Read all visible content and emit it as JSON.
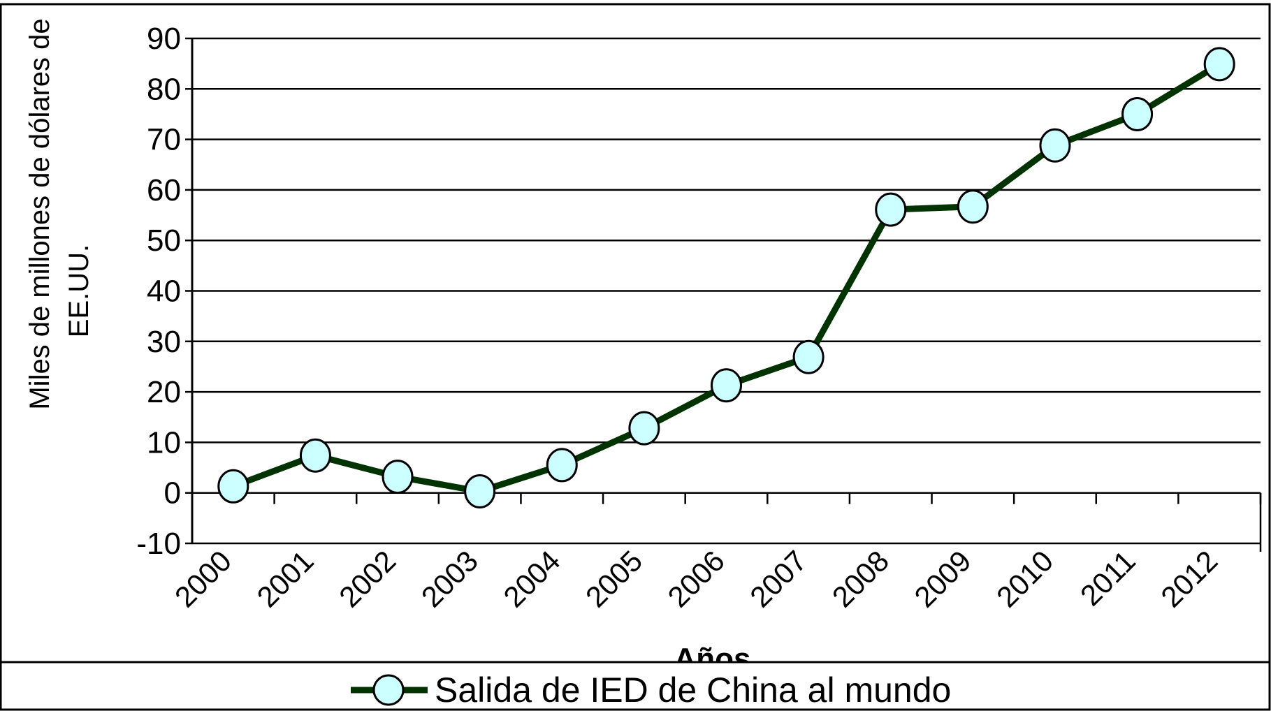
{
  "chart_data": {
    "type": "line",
    "y_label": [
      "Miles de millones de dólares de",
      "EE.UU."
    ],
    "x_label": "Años",
    "categories": [
      "2000",
      "2001",
      "2002",
      "2003",
      "2004",
      "2005",
      "2006",
      "2007",
      "2008",
      "2009",
      "2010",
      "2011",
      "2012"
    ],
    "series": [
      {
        "name": "Salida de IED de China al mundo",
        "color": "#003300",
        "marker_color": "#ccffff",
        "values": [
          1.3,
          7.4,
          3.2,
          0.3,
          5.5,
          12.8,
          21.3,
          26.9,
          56.1,
          56.7,
          68.8,
          75,
          84.9
        ]
      }
    ],
    "ylim": [
      -10,
      90
    ],
    "yticks": [
      -10,
      0,
      10,
      20,
      30,
      40,
      50,
      60,
      70,
      80,
      90
    ],
    "grid": true,
    "legend": "bottom"
  }
}
